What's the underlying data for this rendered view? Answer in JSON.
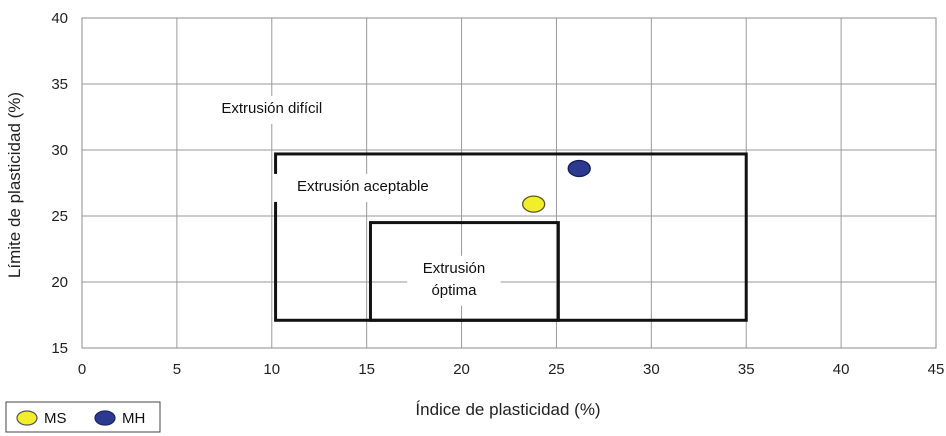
{
  "chart_data": {
    "type": "scatter",
    "xlabel": "Índice de plasticidad (%)",
    "ylabel": "Límite de plasticidad (%)",
    "xlim": [
      0,
      45
    ],
    "ylim": [
      15,
      40
    ],
    "x_ticks": [
      0,
      5,
      10,
      15,
      20,
      25,
      30,
      35,
      40,
      45
    ],
    "y_ticks": [
      15,
      20,
      25,
      30,
      35,
      40
    ],
    "grid": true,
    "legend_position": "bottom-left",
    "series": [
      {
        "name": "MS",
        "color": "#f2ef2a",
        "points": [
          {
            "x": 23.8,
            "y": 25.9
          }
        ]
      },
      {
        "name": "MH",
        "color": "#2b3a8f",
        "points": [
          {
            "x": 26.2,
            "y": 28.6
          }
        ]
      }
    ],
    "zones": [
      {
        "label": "Extrusión difícil",
        "lines": [
          "Extrusión difícil"
        ],
        "label_at": {
          "x": 10.0,
          "y": 32.8
        }
      },
      {
        "label": "Extrusión aceptable",
        "lines": [
          "Extrusión aceptable"
        ],
        "rect": {
          "x0": 10.2,
          "x1": 35.0,
          "y0": 17.1,
          "y1": 29.7
        },
        "label_at": {
          "x": 14.8,
          "y": 26.9
        }
      },
      {
        "label": "Extrusión óptima",
        "lines": [
          "Extrusión",
          "óptima"
        ],
        "rect": {
          "x0": 15.2,
          "x1": 25.1,
          "y0": 17.1,
          "y1": 24.5
        },
        "label_at": {
          "x": 19.6,
          "y": 20.7
        }
      }
    ]
  }
}
